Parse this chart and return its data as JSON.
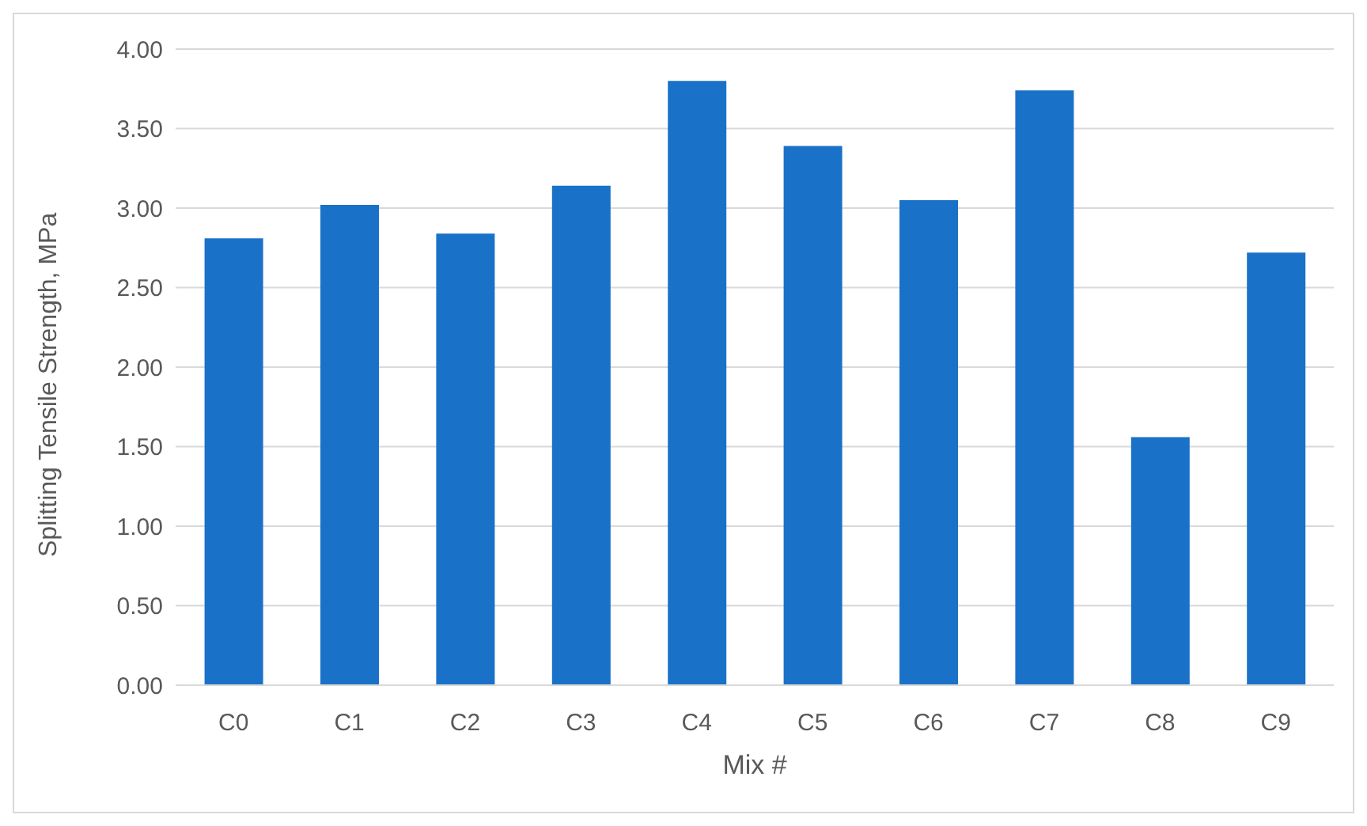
{
  "chart_data": {
    "type": "bar",
    "xlabel": "Mix #",
    "ylabel": "Splitting Tensile Strength, MPa",
    "categories": [
      "C0",
      "C1",
      "C2",
      "C3",
      "C4",
      "C5",
      "C6",
      "C7",
      "C8",
      "C9"
    ],
    "values": [
      2.81,
      3.02,
      2.84,
      3.14,
      3.8,
      3.39,
      3.05,
      3.74,
      1.56,
      2.72
    ],
    "color": "#1a71c8",
    "ylim": [
      0,
      4
    ],
    "yticks": [
      {
        "value": 0,
        "label": "0.00"
      },
      {
        "value": 0.5,
        "label": "0.50"
      },
      {
        "value": 1,
        "label": "1.00"
      },
      {
        "value": 1.5,
        "label": "1.50"
      },
      {
        "value": 2,
        "label": "2.00"
      },
      {
        "value": 2.5,
        "label": "2.50"
      },
      {
        "value": 3,
        "label": "3.00"
      },
      {
        "value": 3.5,
        "label": "3.50"
      },
      {
        "value": 4,
        "label": "4.00"
      }
    ],
    "grid": "y",
    "legend": false
  }
}
